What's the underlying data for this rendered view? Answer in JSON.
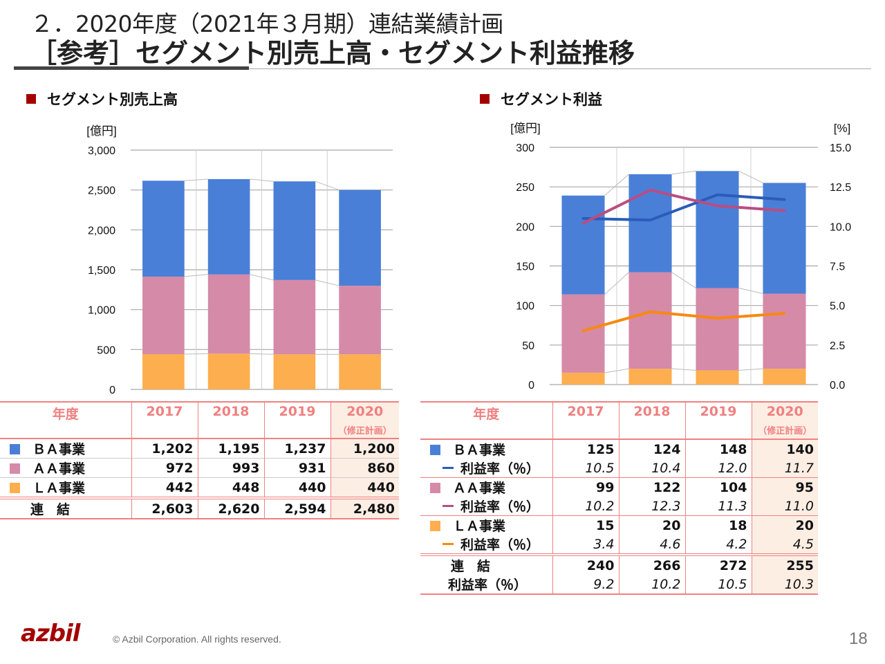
{
  "header": {
    "title_line1": "２．2020年度（2021年３月期）連結業績計画",
    "title_line2": "［参考］セグメント別売上高・セグメント利益推移"
  },
  "colors": {
    "ba": "#4a7fd8",
    "aa": "#d58aa8",
    "la": "#fdae4f",
    "ba_line": "#2a5cb8",
    "aa_line": "#b94d82",
    "la_line": "#f7890f",
    "accent": "#a50000",
    "table_border": "#f08080",
    "plan_bg": "#fdeee4"
  },
  "sales_section": {
    "title": "セグメント別売上高",
    "table": {
      "header_label": "年度",
      "years": [
        "2017",
        "2018",
        "2019",
        "2020"
      ],
      "plan_note": "（修正計画）",
      "rows": [
        {
          "label": "ＢＡ事業",
          "values": [
            "1,202",
            "1,195",
            "1,237",
            "1,200"
          ]
        },
        {
          "label": "ＡＡ事業",
          "values": [
            "972",
            "993",
            "931",
            "860"
          ]
        },
        {
          "label": "ＬＡ事業",
          "values": [
            "442",
            "448",
            "440",
            "440"
          ]
        },
        {
          "label": "連　結",
          "values": [
            "2,603",
            "2,620",
            "2,594",
            "2,480"
          ]
        }
      ]
    }
  },
  "profit_section": {
    "title": "セグメント利益",
    "table": {
      "header_label": "年度",
      "years": [
        "2017",
        "2018",
        "2019",
        "2020"
      ],
      "plan_note": "（修正計画）",
      "groups": [
        {
          "label": "ＢＡ事業",
          "values": [
            "125",
            "124",
            "148",
            "140"
          ],
          "rate_label": "利益率（％）",
          "rates": [
            "10.5",
            "10.4",
            "12.0",
            "11.7"
          ]
        },
        {
          "label": "ＡＡ事業",
          "values": [
            "99",
            "122",
            "104",
            "95"
          ],
          "rate_label": "利益率（％）",
          "rates": [
            "10.2",
            "12.3",
            "11.3",
            "11.0"
          ]
        },
        {
          "label": "ＬＡ事業",
          "values": [
            "15",
            "20",
            "18",
            "20"
          ],
          "rate_label": "利益率（％）",
          "rates": [
            "3.4",
            "4.6",
            "4.2",
            "4.5"
          ]
        },
        {
          "label": "連　結",
          "values": [
            "240",
            "266",
            "272",
            "255"
          ],
          "rate_label": "利益率（％）",
          "rates": [
            "9.2",
            "10.2",
            "10.5",
            "10.3"
          ]
        }
      ]
    }
  },
  "chart_data": [
    {
      "type": "bar",
      "stacked": true,
      "title": "セグメント別売上高",
      "ylabel": "[億円]",
      "xlabel": "",
      "categories": [
        "2017",
        "2018",
        "2019",
        "2020"
      ],
      "ylim": [
        0,
        3000
      ],
      "yticks": [
        0,
        500,
        1000,
        1500,
        2000,
        2500,
        3000
      ],
      "ytick_labels": [
        "0",
        "500",
        "1,000",
        "1,500",
        "2,000",
        "2,500",
        "3,000"
      ],
      "grid": true,
      "series": [
        {
          "name": "ＬＡ事業",
          "values": [
            442,
            448,
            440,
            440
          ],
          "color": "#fdae4f"
        },
        {
          "name": "ＡＡ事業",
          "values": [
            972,
            993,
            931,
            860
          ],
          "color": "#d58aa8"
        },
        {
          "name": "ＢＡ事業",
          "values": [
            1202,
            1195,
            1237,
            1200
          ],
          "color": "#4a7fd8"
        }
      ]
    },
    {
      "type": "bar",
      "stacked": true,
      "title": "セグメント利益",
      "ylabel": "[億円]",
      "y2label": "[%]",
      "xlabel": "",
      "categories": [
        "2017",
        "2018",
        "2019",
        "2020"
      ],
      "ylim": [
        0,
        300
      ],
      "yticks": [
        0,
        50,
        100,
        150,
        200,
        250,
        300
      ],
      "ytick_labels": [
        "0",
        "50",
        "100",
        "150",
        "200",
        "250",
        "300"
      ],
      "y2lim": [
        0,
        15
      ],
      "y2ticks": [
        0,
        2.5,
        5,
        7.5,
        10,
        12.5,
        15
      ],
      "y2tick_labels": [
        "0.0",
        "2.5",
        "5.0",
        "7.5",
        "10.0",
        "12.5",
        "15.0"
      ],
      "grid": true,
      "series": [
        {
          "name": "ＬＡ事業",
          "values": [
            15,
            20,
            18,
            20
          ],
          "color": "#fdae4f"
        },
        {
          "name": "ＡＡ事業",
          "values": [
            99,
            122,
            104,
            95
          ],
          "color": "#d58aa8"
        },
        {
          "name": "ＢＡ事業",
          "values": [
            125,
            124,
            148,
            140
          ],
          "color": "#4a7fd8"
        }
      ],
      "lines": [
        {
          "name": "ＢＡ利益率（％）",
          "axis": "right",
          "values": [
            10.5,
            10.4,
            12.0,
            11.7
          ],
          "color": "#2a5cb8"
        },
        {
          "name": "ＡＡ利益率（％）",
          "axis": "right",
          "values": [
            10.2,
            12.3,
            11.3,
            11.0
          ],
          "color": "#b94d82"
        },
        {
          "name": "ＬＡ利益率（％）",
          "axis": "right",
          "values": [
            3.4,
            4.6,
            4.2,
            4.5
          ],
          "color": "#f7890f"
        }
      ]
    }
  ],
  "footer": {
    "logo": "azbil",
    "copyright": "© Azbil Corporation. All rights reserved.",
    "page_number": "18"
  }
}
